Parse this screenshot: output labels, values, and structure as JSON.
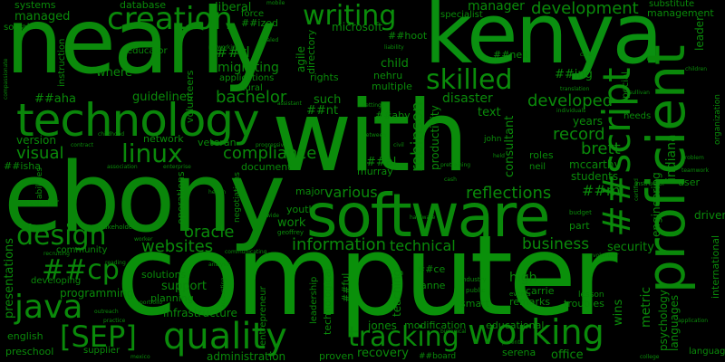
{
  "colors": {
    "background": "#000000",
    "text": "#0a8a0a"
  },
  "words": {
    "nearly": "nearly",
    "kenya": "kenya",
    "with": "with",
    "ebony": "ebony",
    "computer": "computer",
    "software": "software",
    "technology": "technology",
    "creation": "creation",
    "writing": "writing",
    "proficient": "proficient",
    "script": "##script",
    "skilled": "skilled",
    "linux": "linux",
    "design": "design",
    "java": "java",
    "quality": "quality",
    "working": "working",
    "tracking": "tracking",
    "sep": "[SEP]",
    "cp": "##cp",
    "websites": "websites",
    "oracle": "oracle",
    "compliance": "compliance",
    "information": "information",
    "business": "business",
    "reflections": "reflections",
    "development": "development",
    "developed": "developed",
    "record": "record",
    "brett": "brett",
    "bachelor": "bachelor",
    "guidelines": "guidelines",
    "visual": "visual",
    "various": "various",
    "technical": "technical",
    "robinson": "robinson",
    "systems": "systems",
    "managed": "managed",
    "manager": "manager",
    "management": "management",
    "database": "database",
    "liberal": "liberal",
    "migrating": "migrating",
    "rl": "##rl",
    "hoot": "##hoot",
    "nell": "##nell",
    "ing": "##ing",
    "aha": "##aha",
    "nt": "##nt",
    "aby": "##aby",
    "al": "##al",
    "mi": "##mi",
    "isha": "##isha",
    "ce": "##ce",
    "ful": "##ful",
    "board": "##board",
    "ized": "##ized",
    "where": "where",
    "child": "child",
    "nehru": "nehru",
    "multiple": "multiple",
    "disaster": "disaster",
    "text": "text",
    "years": "years",
    "students": "students",
    "mccarthy": "mccarthy",
    "roles": "roles",
    "consultant": "consultant",
    "productivity": "productivity",
    "indiana": "indiana",
    "engineering": "engineering",
    "psychology": "psychology",
    "languages": "languages",
    "language": "language",
    "metric": "metric",
    "international": "international",
    "user": "user",
    "driven": "driven",
    "security": "security",
    "part": "part",
    "high": "high",
    "carrie": "carrie",
    "remarks": "remarks",
    "anne": "anne",
    "smart": "smart",
    "educational": "educational",
    "office": "office",
    "serena": "serena",
    "wins": "wins",
    "troubles": "troubles",
    "lesson": "lesson",
    "teaching": "teaching",
    "jones": "jones",
    "modification": "modification",
    "recovery": "recovery",
    "proven": "proven",
    "administration": "administration",
    "infrastructure": "infrastructure",
    "planning": "planning",
    "support": "support",
    "solutions": "solutions",
    "programming": "programming",
    "developing": "developing",
    "presentations": "presentations",
    "community": "community",
    "english": "english",
    "preschool": "preschool",
    "supplier": "supplier",
    "vendor": "vendor",
    "version": "version",
    "network": "network",
    "document": "document",
    "murray": "murray",
    "such": "such",
    "rights": "rights",
    "microsoft": "microsoft",
    "natural": "natural",
    "applications": "applications",
    "volunteers": "volunteers",
    "educator": "educator",
    "instruction": "instruction",
    "social": "social",
    "force": "force",
    "directory": "directory",
    "agile": "agile",
    "specialist": "specialist",
    "substitute": "substitute",
    "leader": "leader",
    "operations": "operations",
    "major": "major",
    "youth": "youth",
    "work": "work",
    "neil": "neil",
    "john": "john",
    "entrepreneur": "entrepreneur",
    "leadership": "leadership",
    "technological": "technological",
    "veteran": "veteran",
    "special": "special",
    "needs": "needs",
    "organization": "organization",
    "abilities": "abilities",
    "negotiations": "negotiations",
    "stakeholders": "stakeholders",
    "geoffrey": "geoffrey",
    "industry": "industry",
    "events": "events",
    "public": "public",
    "certified": "certified",
    "instructor": "instructor",
    "budget": "budget",
    "mobile": "mobile",
    "scaled": "scaled",
    "liability": "liability",
    "care": "care",
    "childhood": "childhood",
    "contract": "contract",
    "progressive": "progressive",
    "civil": "civil",
    "between": "between",
    "teamwork": "teamwork",
    "problem": "problem",
    "translation": "translation",
    "sullivan": "sullivan",
    "volunteer": "volunteer",
    "college": "college",
    "application": "application",
    "hardware": "hardware",
    "biological": "biological",
    "outreach": "outreach",
    "practice": "practice",
    "recruiting": "recruiting",
    "reading": "reading",
    "health": "health",
    "enterprise": "enterprise",
    "association": "association",
    "wide": "wide",
    "accounting": "accounting",
    "portfolio": "portfolio",
    "compassionate": "compassionate",
    "communicating": "communicating",
    "networking": "networking",
    "children": "children",
    "analysis": "analysis",
    "settings": "settings",
    "individuals": "individuals",
    "pretraining": "pretraining",
    "held": "held",
    "cash": "cash",
    "assistant": "assistant",
    "worker": "worker",
    "mexico": "mexico",
    "parent": "parent"
  }
}
